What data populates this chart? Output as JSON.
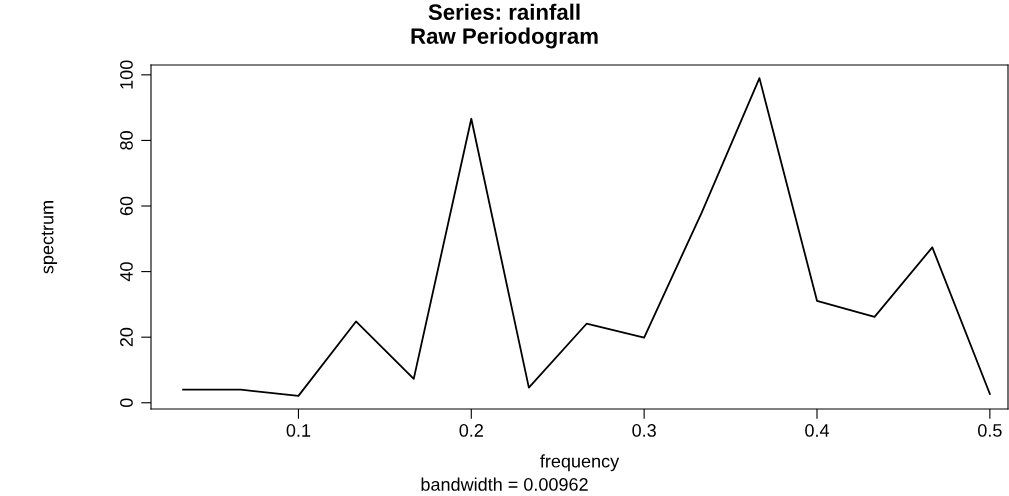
{
  "chart_data": {
    "type": "line",
    "title": "Series: rainfall",
    "subtitle": "Raw Periodogram",
    "xlabel": "frequency",
    "ylabel": "spectrum",
    "annotations": [
      "bandwidth = 0.00962"
    ],
    "x": [
      0.0333,
      0.0667,
      0.1,
      0.1333,
      0.1667,
      0.2,
      0.2333,
      0.2667,
      0.3,
      0.3333,
      0.3667,
      0.4,
      0.4333,
      0.4667,
      0.5
    ],
    "series": [
      {
        "color": "#000000",
        "values": [
          4.0,
          4.0,
          2.1,
          24.8,
          7.3,
          86.6,
          4.6,
          24.1,
          19.9,
          58,
          99,
          31.1,
          26.2,
          47.4,
          2.7
        ]
      }
    ],
    "xlim": [
      0.0147,
      0.5105
    ],
    "ylim": [
      -1.9,
      103
    ],
    "xticks": [
      0.1,
      0.2,
      0.3,
      0.4,
      0.5
    ],
    "yticks": [
      0,
      20,
      40,
      60,
      80,
      100
    ],
    "grid": false,
    "line_style": "solid",
    "marker": "none"
  }
}
